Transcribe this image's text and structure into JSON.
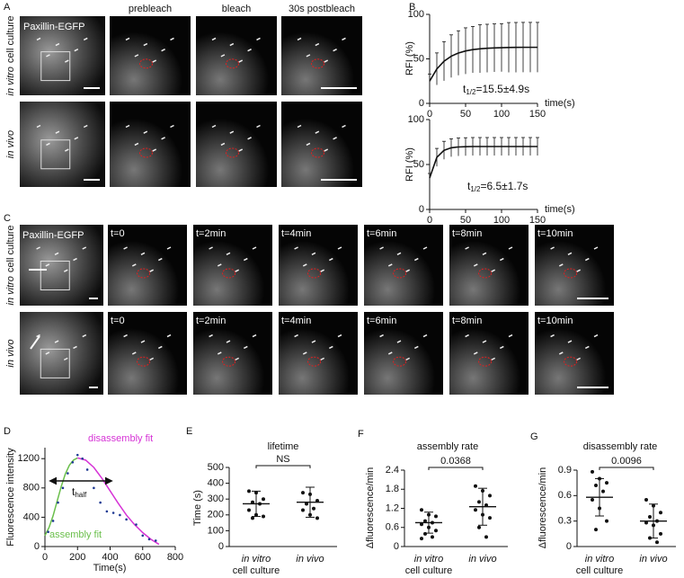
{
  "panel_letters": [
    "A",
    "B",
    "C",
    "D",
    "E",
    "F",
    "G"
  ],
  "panels": {
    "A": {
      "marker": "Paxillin-EGFP",
      "headers": [
        "prebleach",
        "bleach",
        "30s postbleach"
      ],
      "row_labels": [
        [
          "in vitro",
          "cell culture"
        ],
        [
          "in vivo"
        ]
      ]
    },
    "C": {
      "marker": "Paxillin-EGFP",
      "row_times": [
        [
          "t=0",
          "t=2min",
          "t=4min",
          "t=6min",
          "t=8min",
          "t=10min"
        ],
        [
          "t=0",
          "t=2min",
          "t=4min",
          "t=6min",
          "t=8min",
          "t=10min"
        ]
      ],
      "row_labels": [
        [
          "in vitro",
          "cell culture"
        ],
        [
          "in vivo"
        ]
      ]
    }
  },
  "chart_data": [
    {
      "type": "line",
      "ylabel": "RFI (%)",
      "xlabel": "time(s)",
      "color": "#111111",
      "x": [
        0,
        10,
        20,
        30,
        40,
        50,
        60,
        70,
        80,
        90,
        100,
        110,
        120,
        130,
        140,
        150
      ],
      "values": [
        25,
        38.7,
        47.4,
        53.0,
        56.6,
        58.9,
        60.4,
        61.3,
        61.9,
        62.3,
        62.6,
        62.8,
        62.9,
        63.0,
        63.0,
        63.0
      ],
      "errors": [
        8,
        18,
        22,
        24,
        25,
        26,
        26,
        27,
        27,
        27,
        27,
        28,
        28,
        28,
        28,
        28
      ],
      "xlim": [
        0,
        150
      ],
      "xticks": [
        0,
        50,
        100,
        150
      ],
      "ylim": [
        0,
        100
      ],
      "yticks": [
        0,
        50,
        100
      ],
      "annotation": [
        "t",
        "1/2",
        "=15.5±4.9s"
      ]
    },
    {
      "type": "line",
      "ylabel": "RFI (%)",
      "xlabel": "time(s)",
      "color": "#111111",
      "x": [
        0,
        10,
        20,
        30,
        40,
        50,
        60,
        70,
        80,
        90,
        100,
        110,
        120,
        130,
        140,
        150
      ],
      "values": [
        35,
        57.9,
        65.8,
        68.6,
        69.5,
        69.8,
        70,
        70,
        70,
        70,
        70,
        70,
        70,
        70,
        70,
        70
      ],
      "errors": [
        5,
        10,
        10,
        10,
        10,
        10,
        10,
        10,
        10,
        10,
        10,
        10,
        10,
        10,
        10,
        10
      ],
      "xlim": [
        0,
        150
      ],
      "xticks": [
        0,
        50,
        100,
        150
      ],
      "ylim": [
        0,
        100
      ],
      "yticks": [
        0,
        50,
        100
      ],
      "annotation": [
        "t",
        "1/2",
        "=6.5±1.7s"
      ]
    },
    {
      "type": "scatter",
      "ylabel": "Fluorescence intensity",
      "xlabel": "Time(s)",
      "color": "#1f3a93",
      "x": [
        20,
        50,
        80,
        110,
        140,
        170,
        200,
        230,
        260,
        300,
        340,
        380,
        420,
        460,
        500,
        560,
        600,
        640,
        680
      ],
      "values": [
        200,
        350,
        600,
        800,
        1000,
        1150,
        1250,
        1200,
        1050,
        800,
        600,
        480,
        460,
        430,
        370,
        300,
        150,
        100,
        80
      ],
      "fits": [
        {
          "name": "assembly fit",
          "color": "#6abf4b",
          "x": [
            0,
            25,
            50,
            75,
            100,
            125,
            150,
            175,
            200
          ],
          "values": [
            150,
            260,
            420,
            620,
            820,
            990,
            1110,
            1180,
            1210
          ]
        },
        {
          "name": "disassembly fit",
          "color": "#d633d6",
          "x": [
            200,
            250,
            300,
            350,
            400,
            450,
            500,
            550,
            600,
            650,
            700
          ],
          "values": [
            1210,
            1180,
            1080,
            930,
            760,
            590,
            430,
            300,
            190,
            100,
            30
          ]
        }
      ],
      "annotation": [
        "t",
        "half"
      ],
      "xlim": [
        0,
        800
      ],
      "xticks": [
        0,
        200,
        400,
        600,
        800
      ],
      "ylim": [
        0,
        1350
      ],
      "yticks": [
        0,
        400,
        800,
        1200
      ]
    },
    {
      "type": "dot",
      "title": "lifetime",
      "ylabel": "Time (s)",
      "significance": "NS",
      "categories": [
        [
          "in vitro",
          "cell culture"
        ],
        [
          "in vivo"
        ]
      ],
      "groups": [
        {
          "values": [
            350,
            340,
            300,
            280,
            270,
            230,
            200,
            190,
            180
          ],
          "mean": 270,
          "sd": 80
        },
        {
          "values": [
            340,
            330,
            290,
            270,
            240,
            230,
            200,
            180
          ],
          "mean": 280,
          "sd": 95
        }
      ],
      "ylim": [
        0,
        500
      ],
      "yticks": [
        0,
        100,
        200,
        300,
        400,
        500
      ]
    },
    {
      "type": "dot",
      "title": "assembly rate",
      "ylabel": "Δfluorescence/min",
      "significance": "0.0368",
      "categories": [
        [
          "in vitro",
          "cell culture"
        ],
        [
          "in vivo"
        ]
      ],
      "groups": [
        {
          "values": [
            1.15,
            1.0,
            0.95,
            0.8,
            0.75,
            0.7,
            0.6,
            0.5,
            0.4,
            0.3,
            0.25
          ],
          "mean": 0.75,
          "sd": 0.33
        },
        {
          "values": [
            1.9,
            1.75,
            1.6,
            1.4,
            1.3,
            1.15,
            1.0,
            0.9,
            0.6,
            0.3
          ],
          "mean": 1.25,
          "sd": 0.58
        }
      ],
      "ylim": [
        0,
        2.4
      ],
      "yticks": [
        0,
        0.6,
        1.2,
        1.8,
        2.4
      ]
    },
    {
      "type": "dot",
      "title": "disassembly rate",
      "ylabel": "Δfluorescence/min",
      "significance": "0.0096",
      "categories": [
        [
          "in vitro",
          "cell culture"
        ],
        [
          "in vivo"
        ]
      ],
      "groups": [
        {
          "values": [
            0.88,
            0.8,
            0.75,
            0.72,
            0.65,
            0.55,
            0.45,
            0.3,
            0.2
          ],
          "mean": 0.58,
          "sd": 0.22
        },
        {
          "values": [
            0.55,
            0.48,
            0.4,
            0.35,
            0.3,
            0.28,
            0.25,
            0.15,
            0.1,
            0.05
          ],
          "mean": 0.3,
          "sd": 0.2
        }
      ],
      "ylim": [
        0,
        0.9
      ],
      "yticks": [
        0,
        0.3,
        0.6,
        0.9
      ]
    }
  ]
}
